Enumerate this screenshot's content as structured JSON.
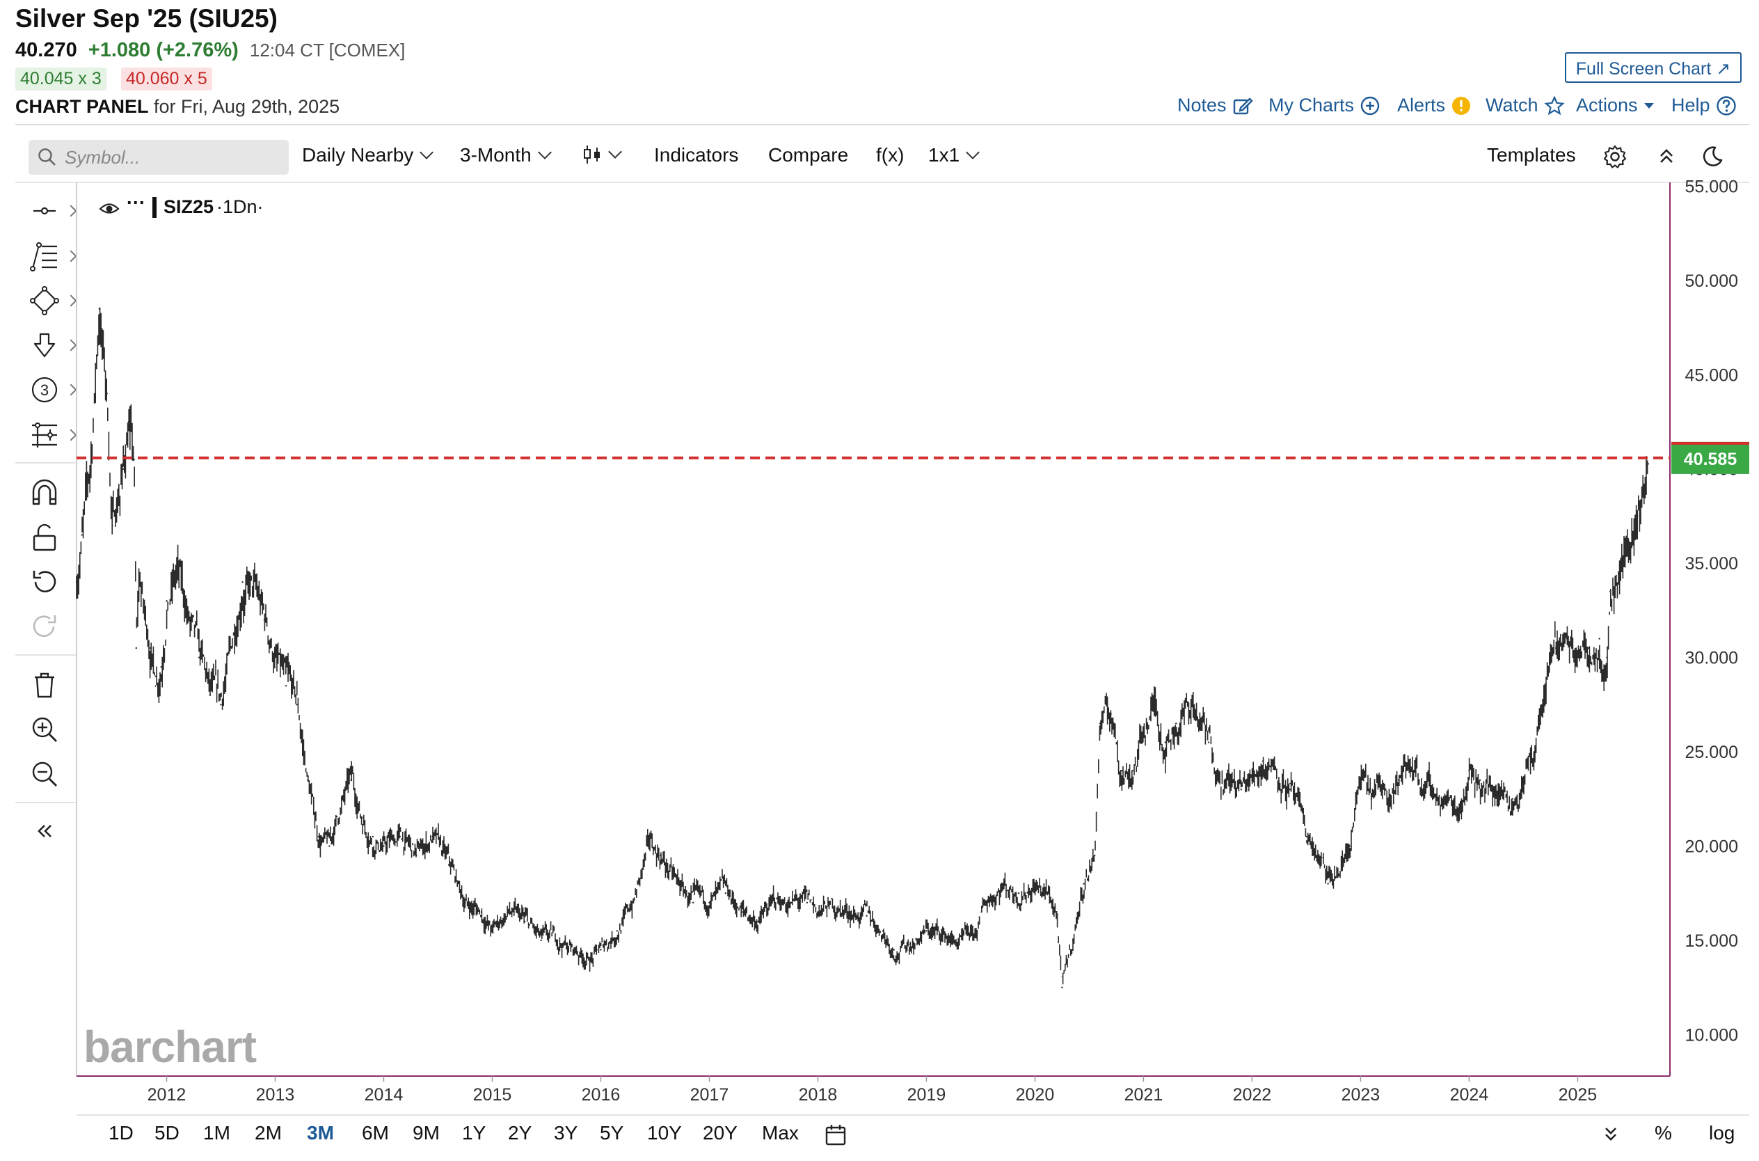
{
  "header": {
    "title": "Silver Sep '25 (SIU25)",
    "last": "40.270",
    "change": "+1.080 (+2.76%)",
    "time": "12:04 CT [COMEX]",
    "bid": "40.045 x 3",
    "ask": "40.060 x 5",
    "panel_label": "CHART PANEL",
    "panel_date": "for Fri, Aug 29th, 2025",
    "full_screen": "Full Screen Chart"
  },
  "links": {
    "notes": "Notes",
    "my_charts": "My Charts",
    "alerts": "Alerts",
    "watch": "Watch",
    "actions": "Actions",
    "help": "Help"
  },
  "toolbar": {
    "search_placeholder": "Symbol...",
    "contract": "Daily Nearby",
    "period": "3-Month",
    "indicators": "Indicators",
    "compare": "Compare",
    "fx": "f(x)",
    "layout": "1x1",
    "templates": "Templates"
  },
  "legend": {
    "symbol": "SIZ25",
    "period": "·1Dn·",
    "dots": "···"
  },
  "watermark": "barchart",
  "ranges": [
    "1D",
    "5D",
    "1M",
    "2M",
    "3M",
    "6M",
    "9M",
    "1Y",
    "2Y",
    "3Y",
    "5Y",
    "10Y",
    "20Y",
    "Max"
  ],
  "active_range": "3M",
  "scale_options": {
    "percent": "%",
    "log": "log"
  },
  "colors": {
    "up": "#2e7d32",
    "down": "#c62828",
    "link": "#1e5a96",
    "axis": "#8e2c6a",
    "price_line": "#d32f2f",
    "price_badge": "#3aa845"
  },
  "chart_data": {
    "type": "line",
    "style": "daily OHLC bars",
    "x_axis_labels": [
      "2012",
      "2013",
      "2014",
      "2015",
      "2016",
      "2017",
      "2018",
      "2019",
      "2020",
      "2021",
      "2022",
      "2023",
      "2024",
      "2025"
    ],
    "y_axis_labels": [
      "55.000",
      "50.000",
      "45.000",
      "40.000",
      "35.000",
      "30.000",
      "25.000",
      "20.000",
      "15.000",
      "10.000"
    ],
    "ylim": [
      7.8,
      55.2
    ],
    "xlim": [
      2011.17,
      2025.85
    ],
    "current_price": 40.585,
    "current_price_label": "40.585",
    "series": [
      {
        "x": [
          2011.17,
          2011.22,
          2011.3,
          2011.38,
          2011.45,
          2011.5,
          2011.55,
          2011.6,
          2011.65,
          2011.7,
          2011.72,
          2011.75,
          2011.8,
          2011.85,
          2011.9,
          2011.95,
          2012.0,
          2012.1,
          2012.2,
          2012.3,
          2012.4,
          2012.5,
          2012.6,
          2012.7,
          2012.8,
          2012.9,
          2013.0,
          2013.1,
          2013.2,
          2013.3,
          2013.4,
          2013.5,
          2013.6,
          2013.7,
          2013.8,
          2013.9,
          2014.0,
          2014.15,
          2014.3,
          2014.45,
          2014.6,
          2014.75,
          2014.9,
          2015.0,
          2015.15,
          2015.3,
          2015.45,
          2015.6,
          2015.75,
          2015.9,
          2016.0,
          2016.15,
          2016.3,
          2016.45,
          2016.55,
          2016.7,
          2016.85,
          2017.0,
          2017.15,
          2017.3,
          2017.45,
          2017.6,
          2017.75,
          2017.9,
          2018.0,
          2018.15,
          2018.3,
          2018.45,
          2018.6,
          2018.7,
          2018.85,
          2019.0,
          2019.15,
          2019.3,
          2019.45,
          2019.55,
          2019.7,
          2019.85,
          2020.0,
          2020.1,
          2020.2,
          2020.25,
          2020.35,
          2020.45,
          2020.55,
          2020.6,
          2020.7,
          2020.8,
          2020.9,
          2021.0,
          2021.1,
          2021.2,
          2021.3,
          2021.45,
          2021.6,
          2021.75,
          2021.9,
          2022.0,
          2022.1,
          2022.2,
          2022.35,
          2022.5,
          2022.6,
          2022.7,
          2022.8,
          2022.9,
          2023.0,
          2023.1,
          2023.2,
          2023.35,
          2023.5,
          2023.6,
          2023.75,
          2023.9,
          2024.0,
          2024.1,
          2024.2,
          2024.3,
          2024.4,
          2024.5,
          2024.6,
          2024.7,
          2024.8,
          2024.9,
          2025.0,
          2025.1,
          2025.2,
          2025.27,
          2025.3,
          2025.4,
          2025.5,
          2025.55,
          2025.6,
          2025.65
        ],
        "values": [
          34.0,
          36.5,
          40.0,
          48.5,
          44.0,
          37.0,
          38.5,
          40.0,
          42.5,
          40.5,
          30.5,
          34.0,
          32.0,
          30.5,
          29.0,
          29.5,
          33.0,
          34.5,
          32.0,
          30.0,
          28.0,
          27.5,
          30.5,
          34.0,
          33.5,
          32.0,
          30.0,
          28.5,
          27.5,
          23.5,
          20.5,
          20.0,
          22.0,
          23.5,
          21.5,
          20.5,
          20.0,
          20.5,
          19.5,
          20.5,
          19.0,
          17.0,
          16.5,
          15.5,
          16.5,
          16.0,
          15.0,
          15.0,
          14.5,
          14.0,
          14.5,
          15.5,
          17.0,
          20.0,
          19.5,
          18.0,
          17.0,
          17.0,
          17.5,
          16.5,
          16.0,
          17.0,
          17.0,
          17.0,
          16.5,
          16.8,
          16.5,
          16.3,
          15.5,
          14.5,
          14.8,
          15.5,
          15.3,
          14.8,
          15.2,
          17.0,
          18.0,
          17.5,
          18.0,
          17.5,
          16.5,
          12.5,
          15.0,
          18.0,
          19.5,
          26.5,
          27.0,
          24.0,
          24.0,
          26.0,
          27.5,
          25.5,
          26.5,
          27.5,
          25.5,
          23.5,
          23.0,
          23.5,
          24.5,
          24.5,
          23.0,
          20.5,
          19.5,
          18.0,
          18.5,
          20.0,
          23.5,
          22.5,
          23.0,
          23.5,
          24.5,
          23.0,
          22.5,
          22.0,
          24.0,
          23.5,
          23.0,
          23.0,
          22.5,
          23.5,
          25.0,
          28.0,
          30.5,
          31.0,
          30.0,
          30.5,
          31.0,
          30.0,
          33.5,
          35.0,
          36.5,
          37.5,
          39.0,
          40.27
        ]
      }
    ]
  }
}
